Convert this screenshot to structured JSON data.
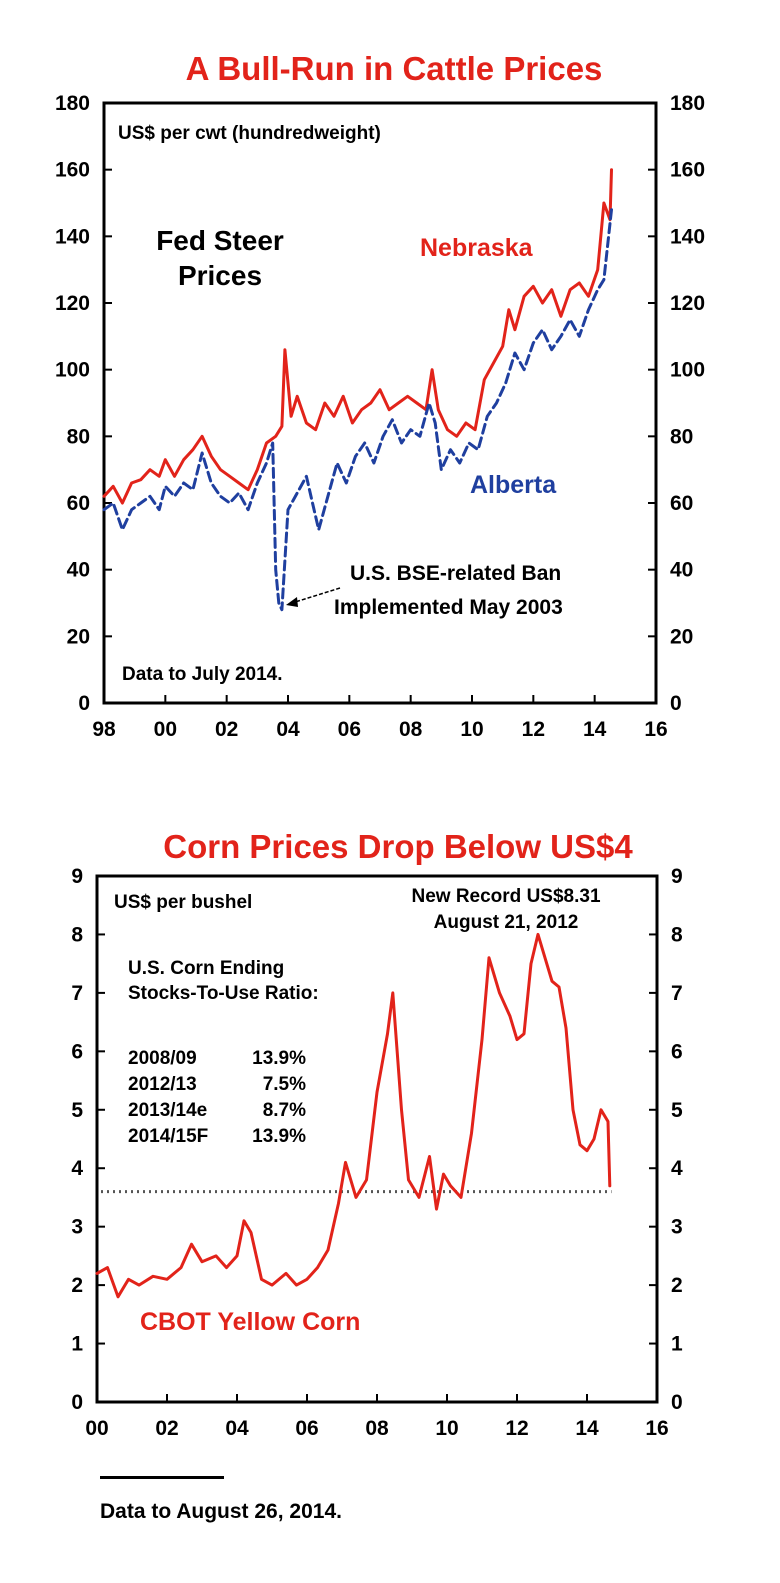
{
  "colors": {
    "red": "#e2231a",
    "blue": "#1f3f9f",
    "black": "#000000",
    "dotted": "#555555"
  },
  "footer": {
    "note": "Data to August 26, 2014."
  },
  "chart_data": [
    {
      "type": "line",
      "title": "A Bull-Run in Cattle Prices",
      "unit_label": "US$ per cwt (hundredweight)",
      "ylim": [
        0,
        180
      ],
      "yticks": [
        0,
        20,
        40,
        60,
        80,
        100,
        120,
        140,
        160,
        180
      ],
      "xlim": [
        1998,
        2016
      ],
      "xticks": [
        1998,
        2000,
        2002,
        2004,
        2006,
        2008,
        2010,
        2012,
        2014,
        2016
      ],
      "xtick_labels": [
        "98",
        "00",
        "02",
        "04",
        "06",
        "08",
        "10",
        "12",
        "14",
        "16"
      ],
      "grid": false,
      "dual_y_axis": true,
      "annotations": {
        "heading_line1": "Fed Steer",
        "heading_line2": "Prices",
        "ban_line1": "U.S. BSE-related Ban",
        "ban_line2": "Implemented May 2003",
        "data_note": "Data to July 2014."
      },
      "series": [
        {
          "name": "Nebraska",
          "color": "red",
          "style": "solid",
          "x": [
            1998.0,
            1998.3,
            1998.6,
            1998.9,
            1999.2,
            1999.5,
            1999.8,
            2000.0,
            2000.3,
            2000.6,
            2000.9,
            2001.2,
            2001.5,
            2001.8,
            2002.1,
            2002.4,
            2002.7,
            2003.0,
            2003.3,
            2003.6,
            2003.8,
            2003.9,
            2004.1,
            2004.3,
            2004.6,
            2004.9,
            2005.2,
            2005.5,
            2005.8,
            2006.1,
            2006.4,
            2006.7,
            2007.0,
            2007.3,
            2007.6,
            2007.9,
            2008.2,
            2008.5,
            2008.7,
            2008.9,
            2009.2,
            2009.5,
            2009.8,
            2010.1,
            2010.4,
            2010.7,
            2011.0,
            2011.2,
            2011.4,
            2011.7,
            2012.0,
            2012.3,
            2012.6,
            2012.9,
            2013.2,
            2013.5,
            2013.8,
            2014.1,
            2014.3,
            2014.5,
            2014.55
          ],
          "y": [
            62,
            65,
            60,
            66,
            67,
            70,
            68,
            73,
            68,
            73,
            76,
            80,
            74,
            70,
            68,
            66,
            64,
            70,
            78,
            80,
            83,
            106,
            86,
            92,
            84,
            82,
            90,
            86,
            92,
            84,
            88,
            90,
            94,
            88,
            90,
            92,
            90,
            88,
            100,
            88,
            82,
            80,
            84,
            82,
            97,
            102,
            107,
            118,
            112,
            122,
            125,
            120,
            124,
            116,
            124,
            126,
            122,
            130,
            150,
            145,
            160
          ]
        },
        {
          "name": "Alberta",
          "color": "blue",
          "style": "dashed",
          "x": [
            1998.0,
            1998.3,
            1998.6,
            1998.9,
            1999.2,
            1999.5,
            1999.8,
            2000.0,
            2000.3,
            2000.6,
            2000.9,
            2001.2,
            2001.5,
            2001.8,
            2002.1,
            2002.4,
            2002.7,
            2003.0,
            2003.3,
            2003.5,
            2003.6,
            2003.7,
            2003.8,
            2004.0,
            2004.3,
            2004.6,
            2004.8,
            2005.0,
            2005.3,
            2005.6,
            2005.9,
            2006.2,
            2006.5,
            2006.8,
            2007.1,
            2007.4,
            2007.7,
            2008.0,
            2008.3,
            2008.6,
            2008.8,
            2009.0,
            2009.3,
            2009.6,
            2009.9,
            2010.2,
            2010.5,
            2010.8,
            2011.1,
            2011.4,
            2011.7,
            2012.0,
            2012.3,
            2012.6,
            2012.9,
            2013.2,
            2013.5,
            2013.8,
            2014.1,
            2014.3,
            2014.55
          ],
          "y": [
            58,
            60,
            52,
            58,
            60,
            62,
            58,
            65,
            62,
            66,
            64,
            75,
            66,
            62,
            60,
            63,
            58,
            66,
            72,
            78,
            40,
            30,
            28,
            58,
            63,
            68,
            60,
            52,
            62,
            72,
            66,
            74,
            78,
            72,
            80,
            85,
            78,
            82,
            80,
            90,
            84,
            70,
            76,
            72,
            78,
            76,
            86,
            90,
            96,
            105,
            100,
            108,
            112,
            106,
            110,
            115,
            110,
            118,
            124,
            127,
            148
          ]
        }
      ]
    },
    {
      "type": "line",
      "title": "Corn Prices Drop Below US$4",
      "unit_label": "US$ per bushel",
      "ylim": [
        0,
        9
      ],
      "yticks": [
        0,
        1,
        2,
        3,
        4,
        5,
        6,
        7,
        8,
        9
      ],
      "xlim": [
        2000,
        2016
      ],
      "xticks": [
        2000,
        2002,
        2004,
        2006,
        2008,
        2010,
        2012,
        2014,
        2016
      ],
      "xtick_labels": [
        "00",
        "02",
        "04",
        "06",
        "08",
        "10",
        "12",
        "14",
        "16"
      ],
      "grid": false,
      "dual_y_axis": true,
      "reference_line": {
        "y": 3.6,
        "style": "dotted"
      },
      "annotations": {
        "record_line1": "New Record US$8.31",
        "record_line2": "August 21, 2012",
        "stocks_line1": "U.S. Corn Ending",
        "stocks_line2": "Stocks-To-Use Ratio:",
        "ratios": [
          {
            "period": "2008/09",
            "value": "13.9%"
          },
          {
            "period": "2012/13",
            "value": "7.5%"
          },
          {
            "period": "2013/14e",
            "value": "8.7%"
          },
          {
            "period": "2014/15F",
            "value": "13.9%"
          }
        ],
        "series_label": "CBOT Yellow Corn"
      },
      "series": [
        {
          "name": "CBOT Yellow Corn",
          "color": "red",
          "style": "solid",
          "x": [
            2000.0,
            2000.3,
            2000.6,
            2000.9,
            2001.2,
            2001.6,
            2002.0,
            2002.4,
            2002.7,
            2003.0,
            2003.4,
            2003.7,
            2004.0,
            2004.2,
            2004.4,
            2004.7,
            2005.0,
            2005.4,
            2005.7,
            2006.0,
            2006.3,
            2006.6,
            2006.9,
            2007.1,
            2007.4,
            2007.7,
            2008.0,
            2008.3,
            2008.45,
            2008.7,
            2008.9,
            2009.2,
            2009.5,
            2009.7,
            2009.9,
            2010.1,
            2010.4,
            2010.7,
            2011.0,
            2011.2,
            2011.5,
            2011.8,
            2012.0,
            2012.2,
            2012.4,
            2012.6,
            2012.8,
            2013.0,
            2013.2,
            2013.4,
            2013.6,
            2013.8,
            2014.0,
            2014.2,
            2014.4,
            2014.6,
            2014.65
          ],
          "y": [
            2.2,
            2.3,
            1.8,
            2.1,
            2.0,
            2.15,
            2.1,
            2.3,
            2.7,
            2.4,
            2.5,
            2.3,
            2.5,
            3.1,
            2.9,
            2.1,
            2.0,
            2.2,
            2.0,
            2.1,
            2.3,
            2.6,
            3.4,
            4.1,
            3.5,
            3.8,
            5.3,
            6.3,
            7.0,
            5.0,
            3.8,
            3.5,
            4.2,
            3.3,
            3.9,
            3.7,
            3.5,
            4.6,
            6.2,
            7.6,
            7.0,
            6.6,
            6.2,
            6.3,
            7.5,
            8.0,
            7.6,
            7.2,
            7.1,
            6.4,
            5.0,
            4.4,
            4.3,
            4.5,
            5.0,
            4.8,
            3.7
          ]
        }
      ]
    }
  ]
}
